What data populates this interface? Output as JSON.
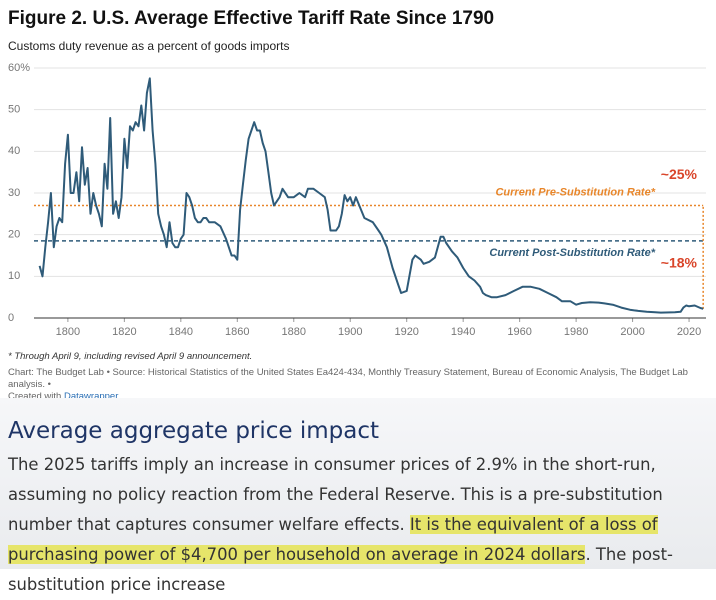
{
  "chart_data": {
    "type": "line",
    "title": "Figure 2. U.S. Average Effective Tariff Rate Since 1790",
    "subtitle": "Customs duty revenue as a percent of goods imports",
    "x": [
      1790,
      1791,
      1792,
      1793,
      1794,
      1795,
      1796,
      1797,
      1798,
      1799,
      1800,
      1801,
      1802,
      1803,
      1804,
      1805,
      1806,
      1807,
      1808,
      1809,
      1810,
      1811,
      1812,
      1813,
      1814,
      1815,
      1816,
      1817,
      1818,
      1819,
      1820,
      1821,
      1822,
      1823,
      1824,
      1825,
      1826,
      1827,
      1828,
      1829,
      1830,
      1831,
      1832,
      1833,
      1834,
      1835,
      1836,
      1837,
      1838,
      1839,
      1840,
      1841,
      1842,
      1843,
      1844,
      1845,
      1846,
      1847,
      1848,
      1849,
      1850,
      1852,
      1854,
      1856,
      1857,
      1858,
      1859,
      1860,
      1861,
      1862,
      1863,
      1864,
      1865,
      1866,
      1867,
      1868,
      1869,
      1870,
      1871,
      1872,
      1873,
      1874,
      1875,
      1876,
      1878,
      1880,
      1882,
      1884,
      1885,
      1887,
      1889,
      1891,
      1892,
      1893,
      1894,
      1895,
      1896,
      1897,
      1898,
      1899,
      1900,
      1901,
      1902,
      1905,
      1908,
      1910,
      1911,
      1913,
      1915,
      1917,
      1918,
      1920,
      1922,
      1923,
      1925,
      1926,
      1928,
      1930,
      1932,
      1933,
      1934,
      1936,
      1938,
      1940,
      1942,
      1944,
      1946,
      1947,
      1948,
      1950,
      1952,
      1955,
      1958,
      1961,
      1964,
      1967,
      1970,
      1973,
      1975,
      1978,
      1980,
      1982,
      1985,
      1988,
      1990,
      1993,
      1996,
      1999,
      2002,
      2005,
      2008,
      2010,
      2015,
      2017,
      2018,
      2019,
      2020,
      2022,
      2024,
      2025
    ],
    "values": [
      12.5,
      10,
      17,
      23,
      30,
      17,
      22,
      24,
      23,
      37,
      44,
      30,
      30,
      35,
      28,
      41,
      32,
      36,
      25,
      30,
      27,
      25,
      22,
      37,
      31,
      48,
      25,
      28,
      24,
      29,
      43,
      36,
      46,
      45,
      47,
      46,
      51,
      45,
      54,
      57.5,
      45,
      37,
      25,
      22,
      20,
      17,
      23,
      18,
      17,
      17,
      19,
      20,
      30,
      29,
      27,
      24,
      23,
      23,
      24,
      24,
      23,
      23,
      22,
      19,
      17,
      15,
      15,
      14,
      26,
      32,
      38,
      43,
      45,
      47,
      45,
      45,
      42,
      40,
      35,
      30,
      27,
      28,
      29,
      31,
      29,
      29,
      30,
      29,
      31,
      31,
      30,
      29,
      26,
      21,
      21,
      21,
      22,
      25,
      29.5,
      28,
      29,
      27,
      29,
      24,
      23,
      21,
      20,
      17,
      12,
      8,
      6,
      6.5,
      14,
      15,
      14,
      13,
      13.5,
      14.5,
      19.5,
      19.5,
      18,
      16,
      14.5,
      12,
      10,
      9,
      7.5,
      6,
      5.5,
      5,
      5,
      5.5,
      6.5,
      7.5,
      7.5,
      7,
      6,
      5,
      4,
      4,
      3.2,
      3.6,
      3.8,
      3.7,
      3.5,
      3.2,
      2.5,
      2,
      1.7,
      1.5,
      1.4,
      1.3,
      1.4,
      1.5,
      2.5,
      3,
      2.8,
      3,
      2.4,
      2.2
    ],
    "color": "#2f5b79",
    "xlim": [
      1788,
      2026
    ],
    "ylim": [
      0,
      60
    ],
    "xticks": [
      1800,
      1820,
      1840,
      1860,
      1880,
      1900,
      1920,
      1940,
      1960,
      1980,
      2000,
      2020
    ],
    "yticks": [
      0,
      10,
      20,
      30,
      40,
      {
        "value": 60,
        "label": "60%"
      },
      50
    ],
    "grid": true,
    "reference_lines": [
      {
        "label": "Current Pre-Substitution Rate*",
        "value": 27,
        "color": "#e8862a"
      },
      {
        "label": "Current Post-Substitution Rate*",
        "value": 18.5,
        "color": "#2f5b79"
      }
    ],
    "annotations": [
      "~25%",
      "~18%"
    ],
    "annotation_color": "#d9452a",
    "footnote": "* Through April 9, including revised April 9 announcement.",
    "source": "Chart: The Budget Lab • Source: Historical Statistics of the United States Ea424-434, Monthly Treasury Statement, Bureau of Economic Analysis, The Budget Lab analysis. •",
    "created_with": "Created with",
    "tool": "Datawrapper"
  },
  "article": {
    "heading": "Average aggregate price impact",
    "paragraph": [
      {
        "text": "The 2025 tariffs imply an increase in consumer prices of 2.9% in the short-run, assuming no policy reaction from the Federal Reserve. This is a pre-substitution number that captures consumer welfare effects. ",
        "highlight": false
      },
      {
        "text": "It is the equivalent of a loss of purchasing power of $4,700 per household on average in 2024 dollars",
        "highlight": true
      },
      {
        "text": ". The post-substitution price increase",
        "highlight": false
      }
    ]
  }
}
